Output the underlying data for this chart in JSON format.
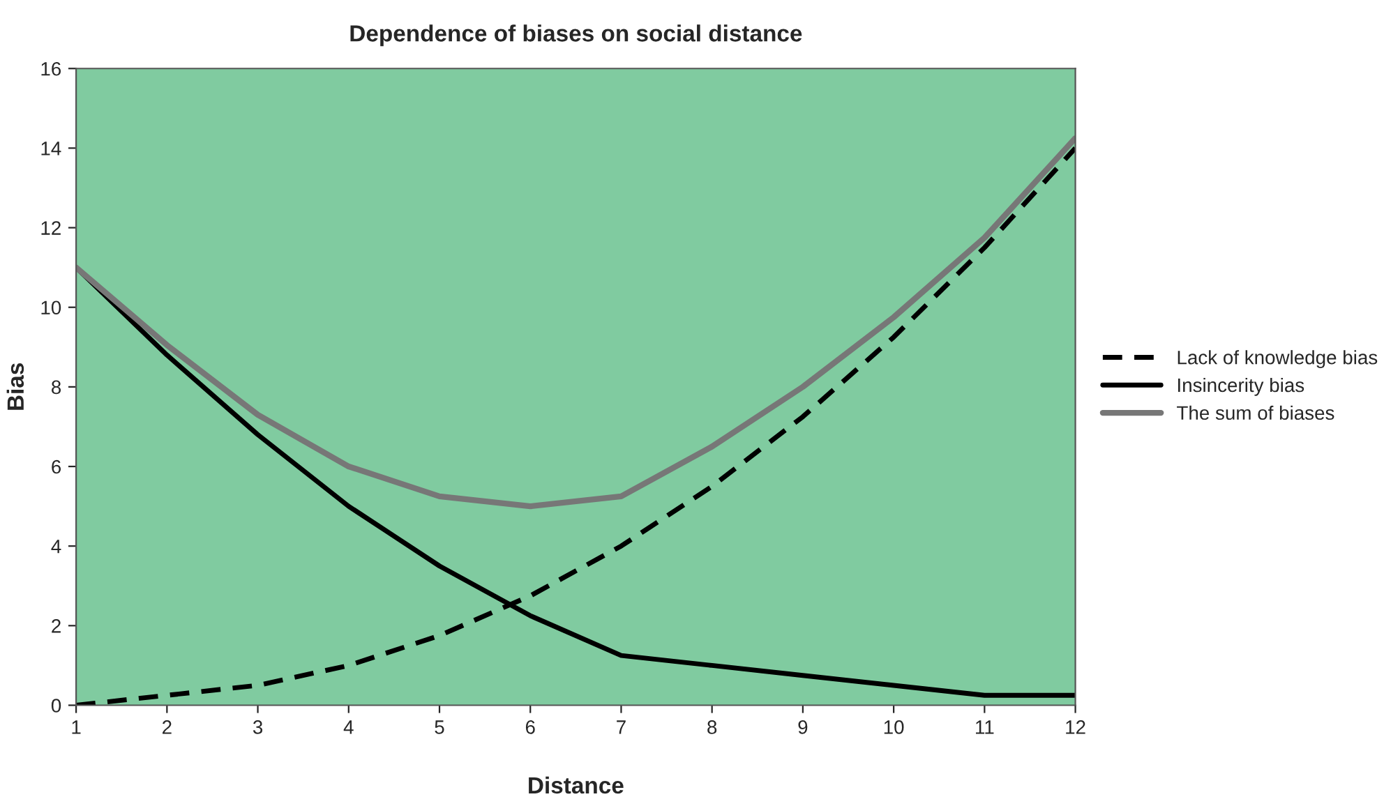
{
  "chart_data": {
    "type": "line",
    "title": "Dependence of biases on social distance",
    "xlabel": "Distance",
    "ylabel": "Bias",
    "x": [
      1,
      2,
      3,
      4,
      5,
      6,
      7,
      8,
      9,
      10,
      11,
      12
    ],
    "series": [
      {
        "name": "Lack of knowledge bias",
        "color": "#000000",
        "line_style": "dashed",
        "values": [
          0,
          0.25,
          0.5,
          1.0,
          1.75,
          2.75,
          4.0,
          5.5,
          7.25,
          9.25,
          11.5,
          14.0
        ]
      },
      {
        "name": "Insincerity bias",
        "color": "#000000",
        "line_style": "solid",
        "values": [
          11,
          8.8,
          6.8,
          5.0,
          3.5,
          2.25,
          1.25,
          1.0,
          0.75,
          0.5,
          0.25,
          0.25
        ]
      },
      {
        "name": "The sum of biases",
        "color": "#777777",
        "line_style": "solid",
        "values": [
          11,
          9.05,
          7.3,
          6.0,
          5.25,
          5.0,
          5.25,
          6.5,
          8.0,
          9.75,
          11.75,
          14.25
        ]
      }
    ],
    "xlim": [
      1,
      12
    ],
    "xticks": [
      1,
      2,
      3,
      4,
      5,
      6,
      7,
      8,
      9,
      10,
      11,
      12
    ],
    "ylim": [
      0,
      16
    ],
    "yticks": [
      0,
      2,
      4,
      6,
      8,
      10,
      12,
      14,
      16
    ],
    "grid": false,
    "legend": "right",
    "marker": "none"
  }
}
